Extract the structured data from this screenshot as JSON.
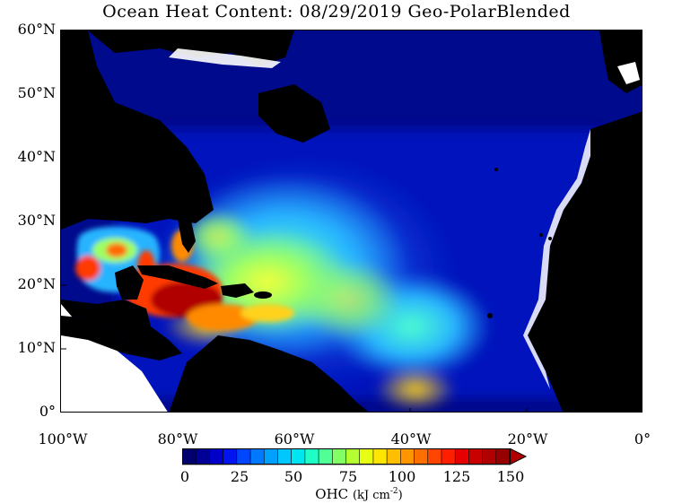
{
  "title": "Ocean Heat Content: 08/29/2019 Geo-PolarBlended",
  "lat_labels": [
    "60°N",
    "50°N",
    "40°N",
    "30°N",
    "20°N",
    "10°N",
    "0°"
  ],
  "lon_labels": [
    "100°W",
    "80°W",
    "60°W",
    "40°W",
    "20°W",
    "0°"
  ],
  "colorbar": {
    "ticks": [
      "0",
      "25",
      "50",
      "75",
      "100",
      "125",
      "150"
    ],
    "label": "OHC",
    "unit": "(kJ cm",
    "unit_exp": "-2",
    "unit_close": ")",
    "range": [
      0,
      150
    ]
  },
  "colors": {
    "land": "#000000",
    "ocean_low": "#000a8c",
    "ocean_mid": "#28b4ff",
    "ocean_warm": "#9cff63",
    "ocean_hot": "#ff4a00",
    "ocean_max": "#b00000",
    "ice": "#ffffff"
  }
}
